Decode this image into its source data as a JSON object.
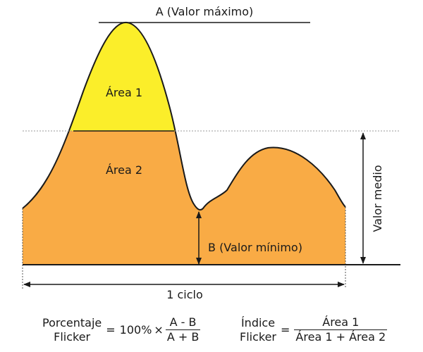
{
  "labels": {
    "max_value": "A (Valor máximo)",
    "area1": "Área 1",
    "area2": "Área 2",
    "min_value": "B (Valor mínimo)",
    "mean_value": "Valor medio",
    "cycle": "1 ciclo"
  },
  "formula_percent": {
    "name_line1": "Porcentaje",
    "name_line2": "Flicker",
    "equals": "=",
    "coefficient": "100%",
    "times": "×",
    "numerator": "A - B",
    "denominator": "A + B"
  },
  "formula_index": {
    "name_line1": "Índice",
    "name_line2": "Flicker",
    "equals": "=",
    "numerator": "Área 1",
    "denominator": "Área 1 + Área 2"
  },
  "colors": {
    "area1": "#fbee2a",
    "area2": "#f9ab45",
    "stroke": "#1a1a1a",
    "mean_line": "#9a9a9a"
  }
}
